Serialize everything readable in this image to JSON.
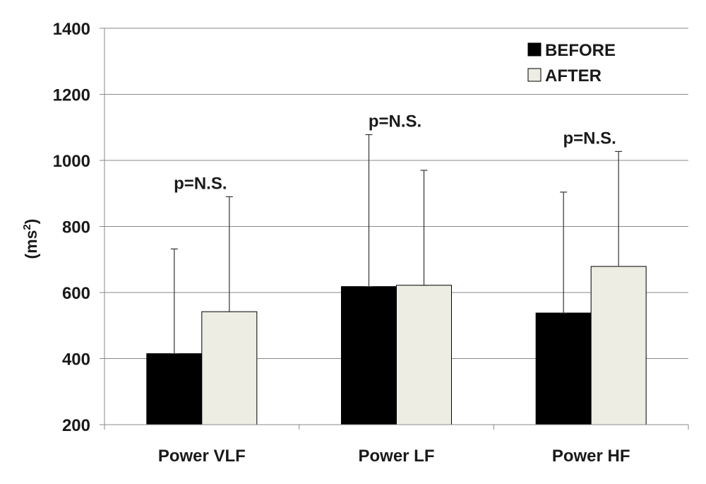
{
  "chart_data": {
    "type": "bar",
    "ylabel_base": "(ms",
    "ylabel_sup": "2",
    "ylabel_close": ")",
    "ylim": [
      200,
      1400
    ],
    "yticks": [
      200,
      400,
      600,
      800,
      1000,
      1200,
      1400
    ],
    "grid": true,
    "legend_position": "top-right",
    "categories": [
      "Power VLF",
      "Power LF",
      "Power HF"
    ],
    "series": [
      {
        "name": "BEFORE",
        "color": "#000000",
        "values": [
          415,
          618,
          538
        ],
        "error_top": [
          732,
          1078,
          904
        ]
      },
      {
        "name": "AFTER",
        "color": "#ededE3",
        "values": [
          542,
          622,
          679
        ],
        "error_top": [
          890,
          970,
          1027
        ]
      }
    ],
    "annotations": [
      "p=N.S.",
      "p=N.S.",
      "p=N.S."
    ]
  }
}
